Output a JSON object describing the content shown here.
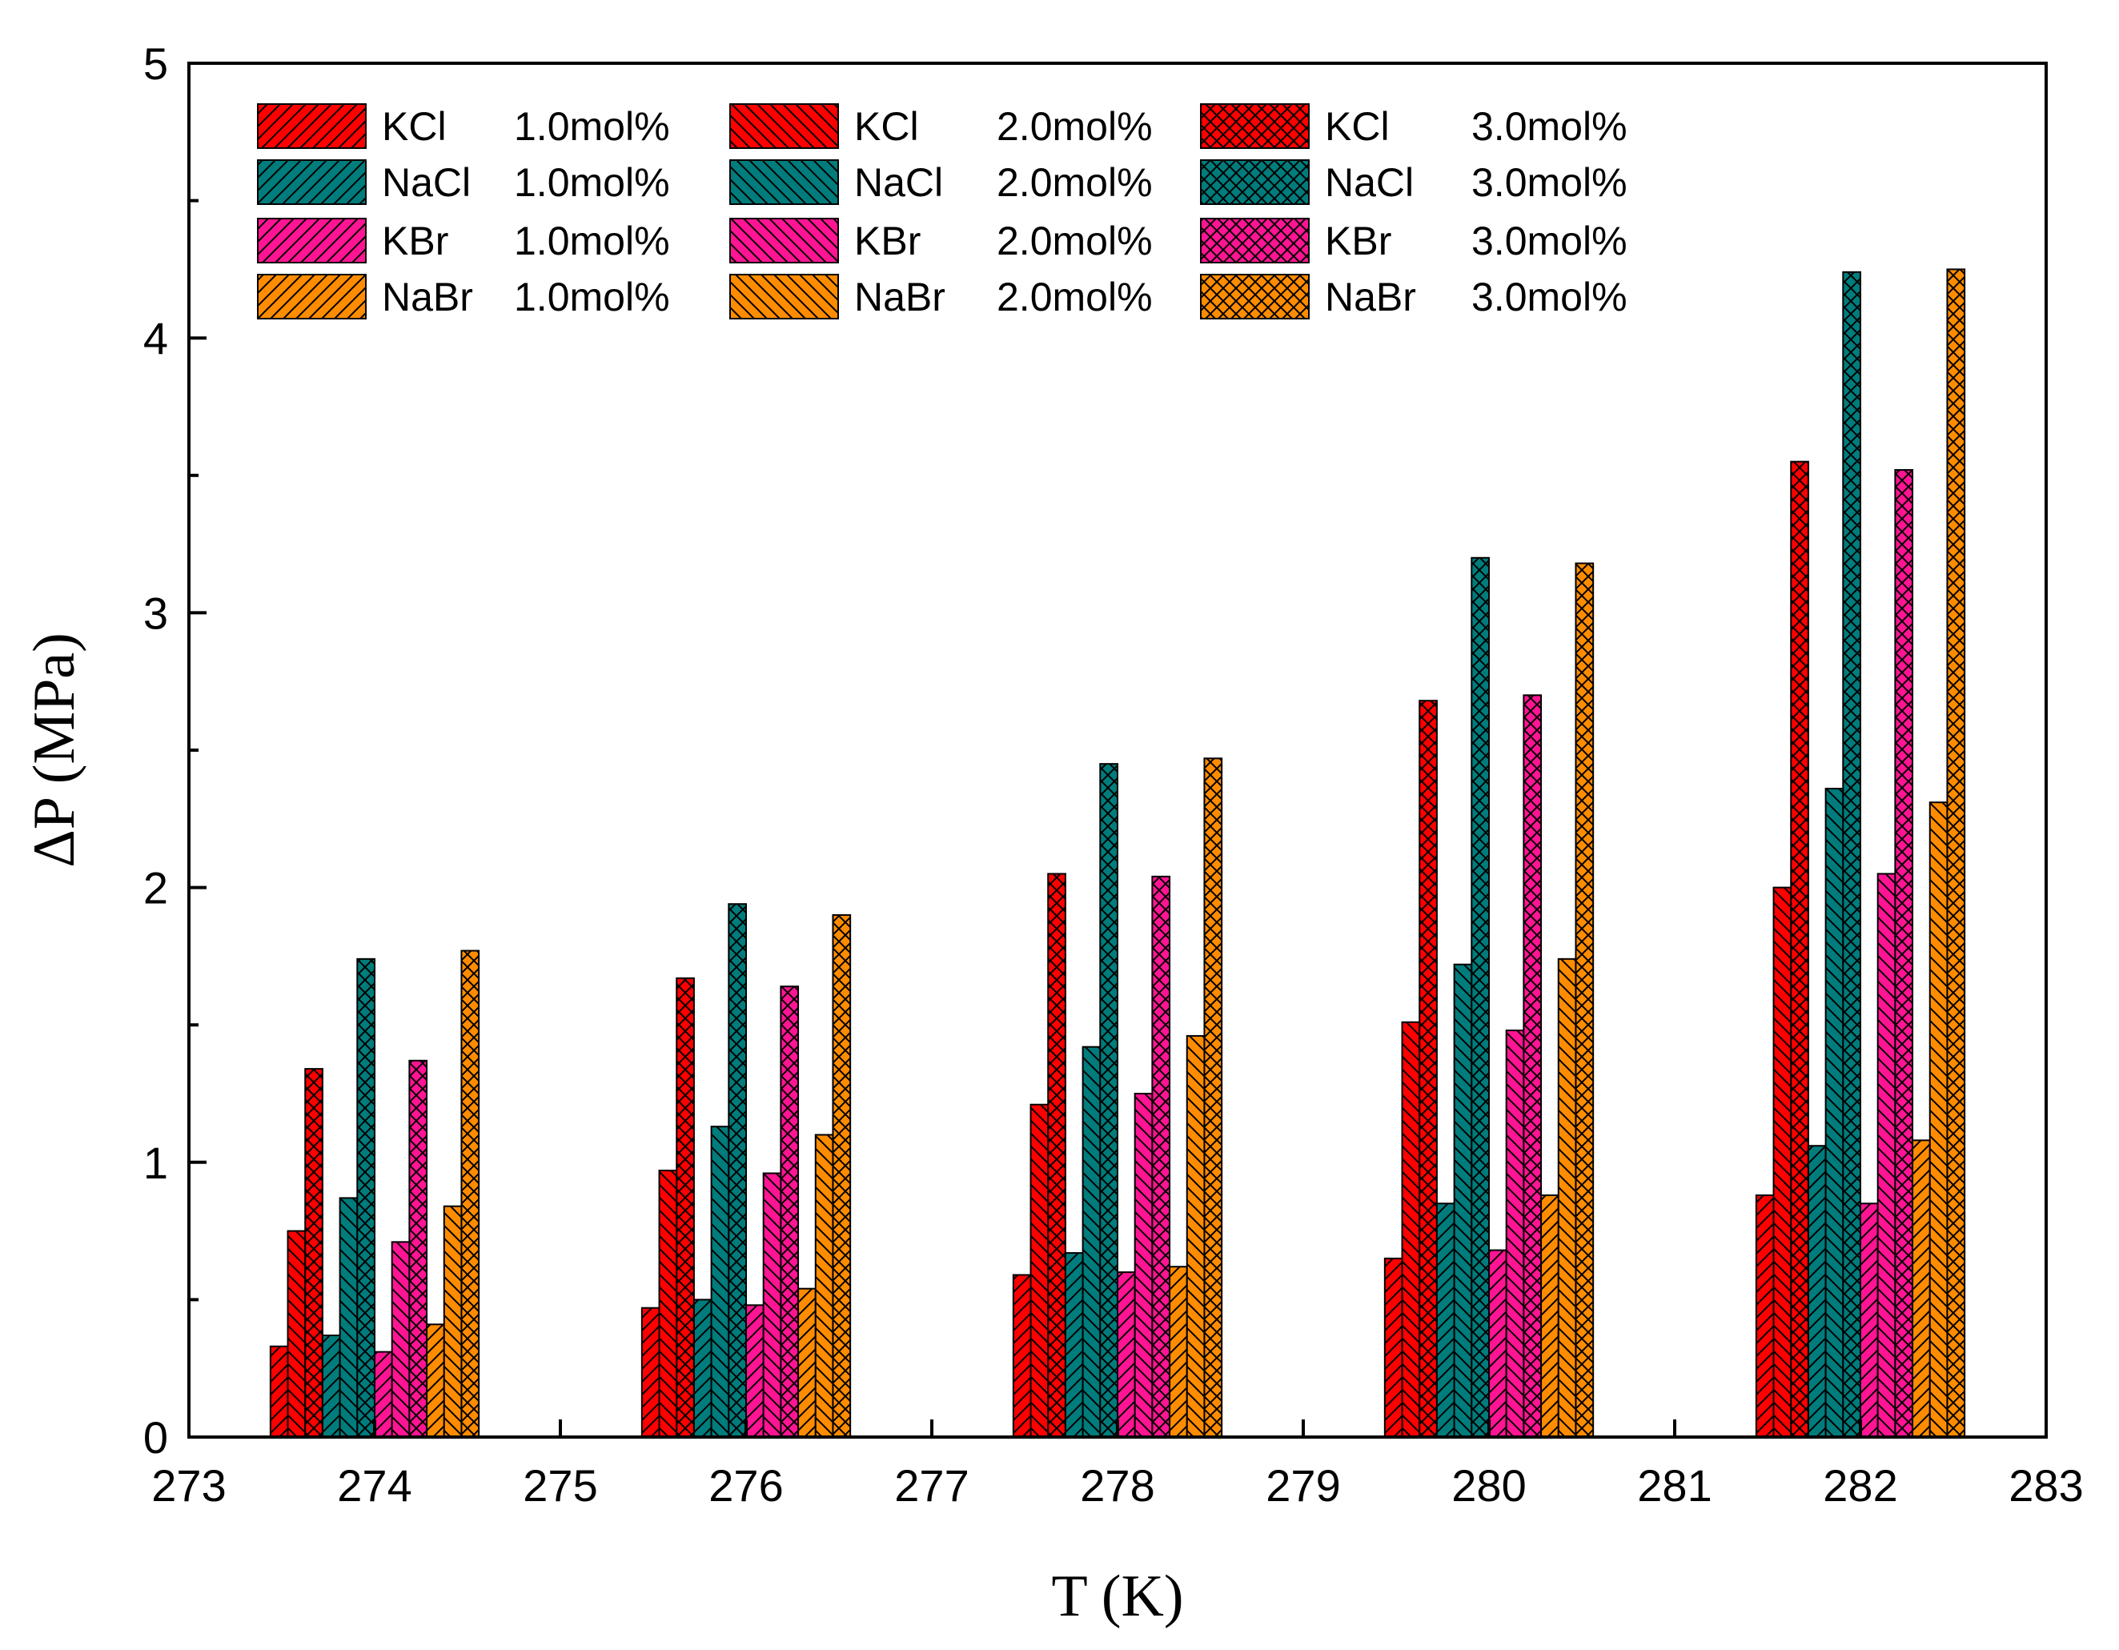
{
  "chart_data": {
    "type": "bar",
    "title": "",
    "xlabel": "T (K)",
    "ylabel": "ΔP (MPa)",
    "xlim": [
      273,
      283
    ],
    "ylim": [
      0,
      5
    ],
    "x_ticks": [
      "273",
      "274",
      "275",
      "276",
      "277",
      "278",
      "279",
      "280",
      "281",
      "282",
      "283"
    ],
    "y_ticks": [
      "0",
      "1",
      "2",
      "3",
      "4",
      "5"
    ],
    "categories": [
      274,
      276,
      278,
      280,
      282
    ],
    "grid": false,
    "legend_position": "top-left",
    "series": [
      {
        "name": "KCl",
        "concentration": "1.0mol%",
        "color": "#ff0000",
        "pattern": "diag-right",
        "values": [
          0.33,
          0.47,
          0.59,
          0.65,
          0.88
        ]
      },
      {
        "name": "KCl",
        "concentration": "2.0mol%",
        "color": "#ff0000",
        "pattern": "diag-left",
        "values": [
          0.75,
          0.97,
          1.21,
          1.51,
          2.0
        ]
      },
      {
        "name": "KCl",
        "concentration": "3.0mol%",
        "color": "#ff0000",
        "pattern": "cross",
        "values": [
          1.34,
          1.67,
          2.05,
          2.68,
          3.55
        ]
      },
      {
        "name": "NaCl",
        "concentration": "1.0mol%",
        "color": "#007c7c",
        "pattern": "diag-right",
        "values": [
          0.37,
          0.5,
          0.67,
          0.85,
          1.06
        ]
      },
      {
        "name": "NaCl",
        "concentration": "2.0mol%",
        "color": "#007c7c",
        "pattern": "diag-left",
        "values": [
          0.87,
          1.13,
          1.42,
          1.72,
          2.36
        ]
      },
      {
        "name": "NaCl",
        "concentration": "3.0mol%",
        "color": "#007c7c",
        "pattern": "cross",
        "values": [
          1.74,
          1.94,
          2.45,
          3.2,
          4.24
        ]
      },
      {
        "name": "KBr",
        "concentration": "1.0mol%",
        "color": "#ff1493",
        "pattern": "diag-right",
        "values": [
          0.31,
          0.48,
          0.6,
          0.68,
          0.85
        ]
      },
      {
        "name": "KBr",
        "concentration": "2.0mol%",
        "color": "#ff1493",
        "pattern": "diag-left",
        "values": [
          0.71,
          0.96,
          1.25,
          1.48,
          2.05
        ]
      },
      {
        "name": "KBr",
        "concentration": "3.0mol%",
        "color": "#ff1493",
        "pattern": "cross",
        "values": [
          1.37,
          1.64,
          2.04,
          2.7,
          3.52
        ]
      },
      {
        "name": "NaBr",
        "concentration": "1.0mol%",
        "color": "#ff8c00",
        "pattern": "diag-right",
        "values": [
          0.41,
          0.54,
          0.62,
          0.88,
          1.08
        ]
      },
      {
        "name": "NaBr",
        "concentration": "2.0mol%",
        "color": "#ff8c00",
        "pattern": "diag-left",
        "values": [
          0.84,
          1.1,
          1.46,
          1.74,
          2.31
        ]
      },
      {
        "name": "NaBr",
        "concentration": "3.0mol%",
        "color": "#ff8c00",
        "pattern": "cross",
        "values": [
          1.77,
          1.9,
          2.47,
          3.18,
          4.25
        ]
      }
    ]
  }
}
